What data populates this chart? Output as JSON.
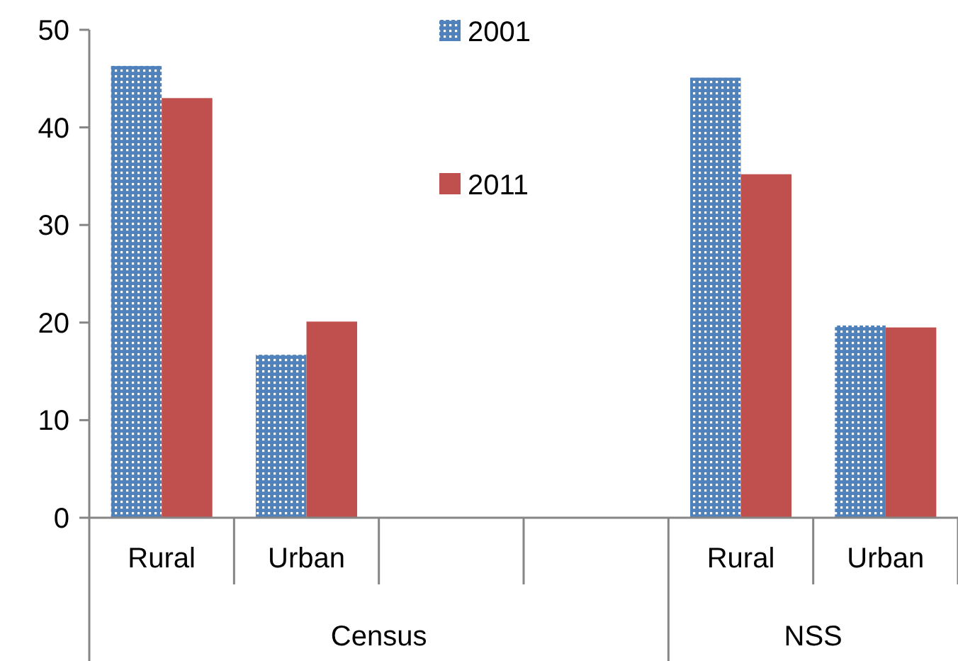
{
  "chart_data": {
    "type": "bar",
    "categories": [
      "Rural",
      "Urban",
      null,
      null,
      "Rural",
      "Urban"
    ],
    "series": [
      {
        "name": "2001",
        "color": "#4f81bd",
        "values": [
          46.3,
          16.7,
          null,
          null,
          45.1,
          19.7
        ]
      },
      {
        "name": "2011",
        "color": "#c0504d",
        "values": [
          43.0,
          20.1,
          null,
          null,
          35.2,
          19.5
        ]
      }
    ],
    "ylim": [
      0,
      50
    ],
    "yticks": [
      0,
      10,
      20,
      30,
      40,
      50
    ],
    "grid": false,
    "legend": "top",
    "annotations": [
      "Census",
      "NSS"
    ]
  }
}
